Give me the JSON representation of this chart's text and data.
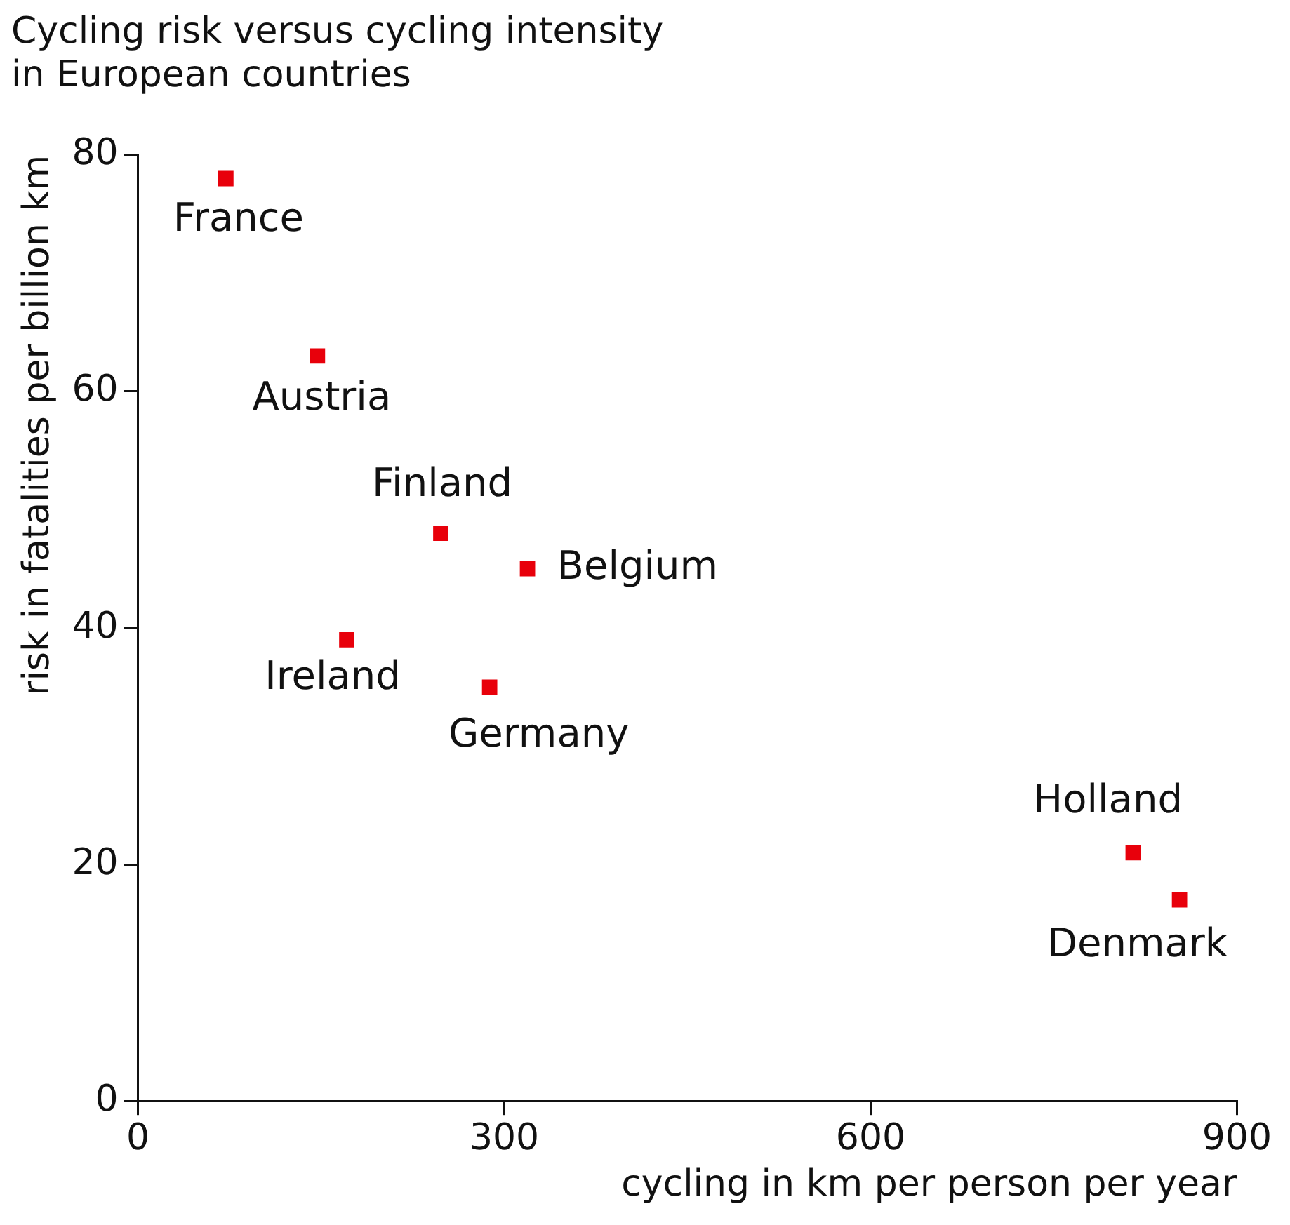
{
  "chart_data": {
    "type": "scatter",
    "title": "Cycling risk versus cycling intensity\nin European countries",
    "xlabel": "cycling in km per person per year",
    "ylabel": "risk in fatalities per billion km",
    "x": [
      72,
      147,
      248,
      319,
      171,
      288,
      815,
      853
    ],
    "series": [
      {
        "color": "#e8000b",
        "values": [
          78,
          63,
          48,
          45,
          39,
          35,
          21,
          17
        ]
      }
    ],
    "xlim": [
      0,
      900
    ],
    "xticks": [
      0,
      300,
      600,
      900
    ],
    "ylim": [
      0,
      80
    ],
    "yticks": [
      0,
      20,
      40,
      60,
      80
    ],
    "grid": false,
    "legend": false,
    "marker": "square",
    "annotations": [
      {
        "text": "France",
        "x": 72,
        "y": 78
      },
      {
        "text": "Austria",
        "x": 147,
        "y": 63
      },
      {
        "text": "Finland",
        "x": 248,
        "y": 48
      },
      {
        "text": "Belgium",
        "x": 319,
        "y": 45
      },
      {
        "text": "Ireland",
        "x": 171,
        "y": 39
      },
      {
        "text": "Germany",
        "x": 288,
        "y": 35
      },
      {
        "text": "Holland",
        "x": 815,
        "y": 21
      },
      {
        "text": "Denmark",
        "x": 853,
        "y": 17
      }
    ]
  }
}
